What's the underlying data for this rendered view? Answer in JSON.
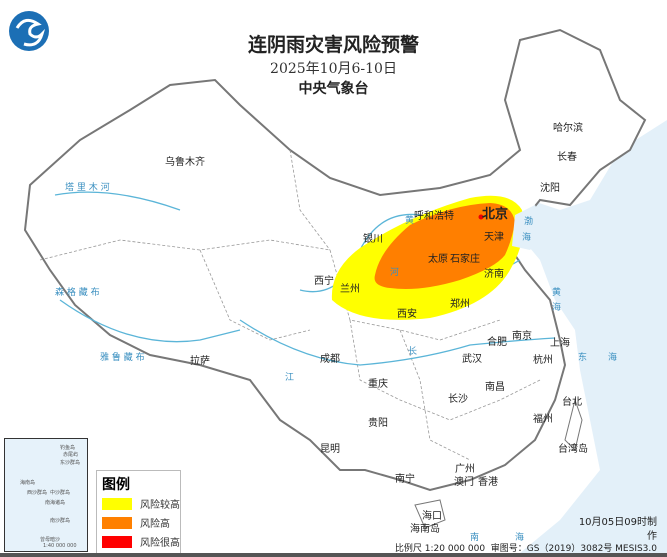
{
  "header": {
    "title": "连阴雨灾害风险预警",
    "date_range": "2025年10月6-10日",
    "issuer": "中央气象台"
  },
  "legend": {
    "title": "图例",
    "items": [
      {
        "label": "风险较高",
        "color": "#ffff00"
      },
      {
        "label": "风险高",
        "color": "#ff8000"
      },
      {
        "label": "风险很高",
        "color": "#ff0000"
      }
    ]
  },
  "cities": [
    {
      "name": "乌鲁木齐"
    },
    {
      "name": "哈尔滨"
    },
    {
      "name": "长春"
    },
    {
      "name": "沈阳"
    },
    {
      "name": "北京"
    },
    {
      "name": "天津"
    },
    {
      "name": "呼和浩特"
    },
    {
      "name": "银川"
    },
    {
      "name": "太原"
    },
    {
      "name": "石家庄"
    },
    {
      "name": "济南"
    },
    {
      "name": "西宁"
    },
    {
      "name": "兰州"
    },
    {
      "name": "郑州"
    },
    {
      "name": "西安"
    },
    {
      "name": "拉萨"
    },
    {
      "name": "成都"
    },
    {
      "name": "南京"
    },
    {
      "name": "合肥"
    },
    {
      "name": "上海"
    },
    {
      "name": "武汉"
    },
    {
      "name": "杭州"
    },
    {
      "name": "重庆"
    },
    {
      "name": "长沙"
    },
    {
      "name": "南昌"
    },
    {
      "name": "贵阳"
    },
    {
      "name": "福州"
    },
    {
      "name": "台北"
    },
    {
      "name": "昆明"
    },
    {
      "name": "南宁"
    },
    {
      "name": "广州"
    },
    {
      "name": "澳门"
    },
    {
      "name": "香港"
    },
    {
      "name": "海口"
    },
    {
      "name": "台湾岛"
    },
    {
      "name": "海南岛"
    }
  ],
  "water": [
    {
      "name": "渤"
    },
    {
      "name": "海"
    },
    {
      "name": "黄"
    },
    {
      "name": "海"
    },
    {
      "name": "东"
    },
    {
      "name": "海"
    },
    {
      "name": "南"
    },
    {
      "name": "海"
    },
    {
      "name": "塔 里 木 河"
    },
    {
      "name": "雅 鲁 藏 布"
    },
    {
      "name": "森 格 藏 布"
    },
    {
      "name": "长"
    },
    {
      "name": "江"
    },
    {
      "name": "黄"
    },
    {
      "name": "河"
    }
  ],
  "inset": {
    "labels": [
      "钓鱼岛",
      "赤尾屿",
      "东沙群岛",
      "海南岛",
      "西沙群岛",
      "中沙群岛",
      "南海诸岛",
      "南沙群岛",
      "曾母暗沙"
    ],
    "scale": "1:40 000 000"
  },
  "footer": {
    "made_time": "10月05日09时制",
    "made_suffix": "作",
    "scale": "比例尺 1:20 000 000",
    "review_no": "审图号：GS（2019）3082号 MESIS3.0"
  },
  "colors": {
    "sea": "#dcecf7",
    "land": "#ffffff",
    "border": "#888888",
    "river": "#5bb5d8"
  }
}
